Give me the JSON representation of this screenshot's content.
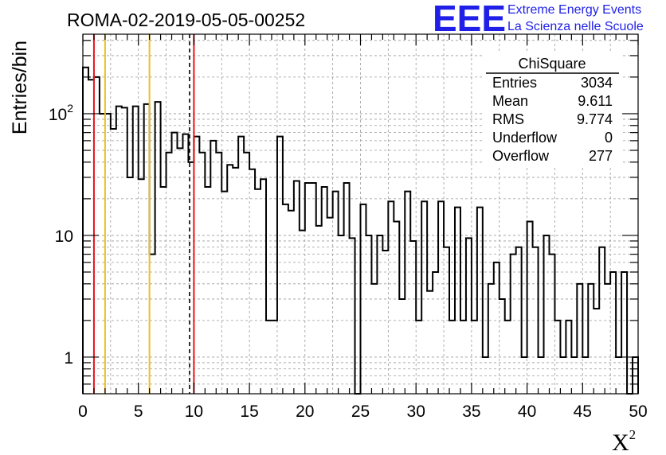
{
  "title": "ROMA-02-2019-05-05-00252",
  "logo": {
    "letters": "EEE",
    "line1": "Extreme Energy Events",
    "line2": "La Scienza nelle Scuole",
    "color": "#1f1fe8"
  },
  "stats": {
    "header": "ChiSquare",
    "rows": [
      {
        "label": "Entries",
        "value": "3034"
      },
      {
        "label": "Mean",
        "value": "9.611"
      },
      {
        "label": "RMS",
        "value": "9.774"
      },
      {
        "label": "Underflow",
        "value": "0"
      },
      {
        "label": "Overflow",
        "value": "277"
      }
    ]
  },
  "chart_data": {
    "type": "histogram",
    "ylabel": "Entries/bin",
    "xlabel_base": "X",
    "xlabel_sup": "2",
    "xlim": [
      0,
      50
    ],
    "ylim": [
      0.5,
      450
    ],
    "yscale": "log",
    "bin_width": 0.5,
    "bin_start": 0,
    "x_ticks": [
      0,
      5,
      10,
      15,
      20,
      25,
      30,
      35,
      40,
      45,
      50
    ],
    "y_ticks": [
      {
        "value": 1,
        "label": "1"
      },
      {
        "value": 10,
        "label": "10"
      },
      {
        "value": 100,
        "label": "10",
        "sup": "2"
      }
    ],
    "grid": true,
    "values": [
      240,
      190,
      200,
      100,
      100,
      75,
      115,
      112,
      30,
      115,
      29,
      120,
      7,
      125,
      25,
      48,
      70,
      52,
      68,
      40,
      65,
      48,
      25,
      60,
      48,
      23,
      38,
      36,
      65,
      48,
      35,
      24,
      29,
      2,
      2,
      65,
      18,
      16,
      28,
      11,
      27,
      27,
      12,
      25,
      14,
      23,
      10,
      27,
      9.5,
      0,
      18,
      10,
      4,
      10,
      7.5,
      19,
      13,
      3,
      23,
      9,
      2,
      19,
      3.5,
      5,
      19,
      8,
      2,
      17,
      2,
      9.5,
      2,
      17,
      1,
      4,
      6,
      3,
      2,
      7,
      8,
      1,
      13,
      8,
      1,
      10,
      7,
      2,
      1,
      2,
      1,
      4,
      1,
      4,
      2.5,
      8,
      4,
      5,
      1,
      5,
      0,
      1
    ],
    "overflow_line_value": 1,
    "vertical_lines": [
      {
        "x": 1,
        "color": "#e8141a",
        "style": "solid"
      },
      {
        "x": 2,
        "color": "#f0be1e",
        "style": "solid"
      },
      {
        "x": 6,
        "color": "#f0be1e",
        "style": "solid"
      },
      {
        "x": 9.611,
        "color": "#000000",
        "style": "dashed"
      },
      {
        "x": 10,
        "color": "#e8141a",
        "style": "solid"
      }
    ]
  }
}
